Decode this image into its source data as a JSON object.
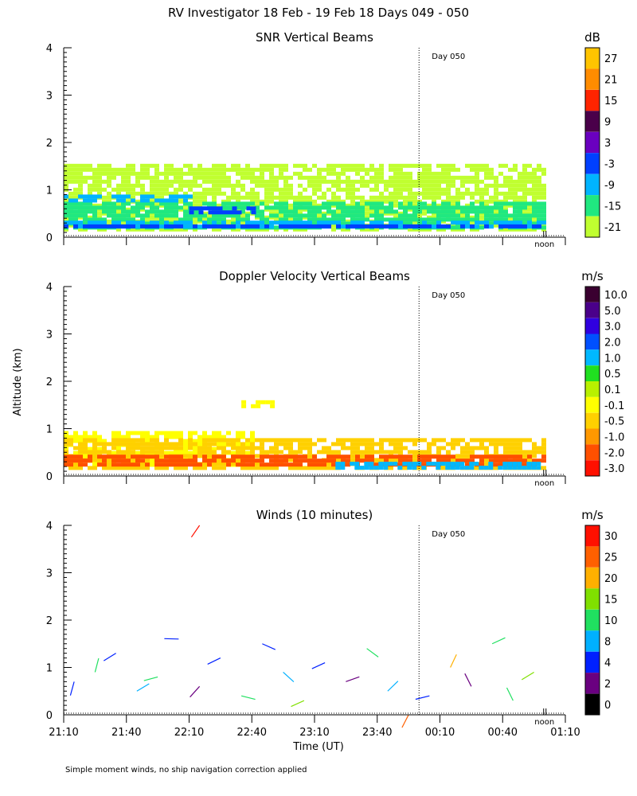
{
  "figure": {
    "title": "RV Investigator  18 Feb - 19 Feb 18 Days 049 - 050",
    "ylabel": "Altitude (km)",
    "xlabel": "Time (UT)",
    "footnote": "Simple moment winds, no ship navigation correction applied",
    "day_marker": "Day 050",
    "noon_label": "noon"
  },
  "chart_data": [
    {
      "type": "heatmap",
      "title": "SNR Vertical Beams",
      "colorbar": {
        "unit": "dB",
        "ticks": [
          "27",
          "21",
          "15",
          "9",
          "3",
          "-3",
          "-9",
          "-15",
          "-21"
        ],
        "colors": [
          "#ffc400",
          "#ff8c00",
          "#ff2400",
          "#4a004a",
          "#6a00c0",
          "#0040ff",
          "#00b4ff",
          "#20e880",
          "#c0ff30"
        ]
      },
      "x_ticks": [
        "21:10",
        "21:40",
        "22:10",
        "22:40",
        "23:10",
        "23:40",
        "00:10",
        "00:40",
        "01:10"
      ],
      "y_ticks": [
        "0",
        "1",
        "2",
        "3",
        "4"
      ],
      "ylim": [
        0,
        4
      ],
      "xlim": [
        0,
        240
      ],
      "layers": [
        {
          "value": -21,
          "x0": 0,
          "x1": 230,
          "y0": 0.15,
          "y1": 1.55
        },
        {
          "value": -15,
          "x0": 0,
          "x1": 230,
          "y0": 0.2,
          "y1": 0.75
        },
        {
          "value": -9,
          "x0": 0,
          "x1": 60,
          "y0": 0.75,
          "y1": 0.9
        },
        {
          "value": -9,
          "x0": 0,
          "x1": 230,
          "y0": 0.2,
          "y1": 0.35
        },
        {
          "value": -3,
          "x0": 60,
          "x1": 90,
          "y0": 0.5,
          "y1": 0.65
        },
        {
          "value": -3,
          "x0": 0,
          "x1": 230,
          "y0": 0.2,
          "y1": 0.27
        }
      ]
    },
    {
      "type": "heatmap",
      "title": "Doppler Velocity Vertical Beams",
      "colorbar": {
        "unit": "m/s",
        "ticks": [
          "10.0",
          "5.0",
          "3.0",
          "2.0",
          "1.0",
          "0.5",
          "0.1",
          "-0.1",
          "-0.5",
          "-1.0",
          "-2.0",
          "-3.0"
        ],
        "colors": [
          "#3a0030",
          "#4a008a",
          "#3000e0",
          "#0050ff",
          "#00b8ff",
          "#20e020",
          "#b8f000",
          "#ffff00",
          "#ffd000",
          "#ff9800",
          "#ff5000",
          "#ff1000"
        ]
      },
      "x_ticks": [
        "21:10",
        "21:40",
        "22:10",
        "22:40",
        "23:10",
        "23:40",
        "00:10",
        "00:40",
        "01:10"
      ],
      "y_ticks": [
        "0",
        "1",
        "2",
        "3",
        "4"
      ],
      "ylim": [
        0,
        4
      ],
      "xlim": [
        0,
        240
      ],
      "layers": [
        {
          "value": -0.1,
          "x0": 0,
          "x1": 90,
          "y0": 0.2,
          "y1": 0.95
        },
        {
          "value": -0.5,
          "x0": 0,
          "x1": 230,
          "y0": 0.2,
          "y1": 0.8
        },
        {
          "value": -2.0,
          "x0": 0,
          "x1": 230,
          "y0": 0.2,
          "y1": 0.45
        },
        {
          "value": 1.0,
          "x0": 130,
          "x1": 230,
          "y0": 0.2,
          "y1": 0.3
        },
        {
          "value": -0.1,
          "x0": 85,
          "x1": 100,
          "y0": 1.5,
          "y1": 1.6
        }
      ]
    },
    {
      "type": "scatter",
      "title": "Winds (10 minutes)",
      "colorbar": {
        "unit": "m/s",
        "ticks": [
          "30",
          "25",
          "20",
          "15",
          "10",
          "8",
          "4",
          "2",
          "0"
        ],
        "colors": [
          "#ff1000",
          "#ff6000",
          "#ffb000",
          "#80e000",
          "#20e060",
          "#00b0ff",
          "#0020ff",
          "#6a0080",
          "#000000"
        ]
      },
      "x_ticks": [
        "21:10",
        "21:40",
        "22:10",
        "22:40",
        "23:10",
        "23:40",
        "00:10",
        "00:40",
        "01:10"
      ],
      "y_ticks": [
        "0",
        "1",
        "2",
        "3",
        "4"
      ],
      "ylim": [
        0,
        4
      ],
      "xlim": [
        0,
        240
      ],
      "barbs": [
        {
          "t": 65,
          "alt": 4.0,
          "speed": 30
        },
        {
          "t": 5,
          "alt": 0.7,
          "speed": 6
        },
        {
          "t": 15,
          "alt": 0.9,
          "speed": 12
        },
        {
          "t": 25,
          "alt": 1.3,
          "speed": 4
        },
        {
          "t": 35,
          "alt": 0.5,
          "speed": 8
        },
        {
          "t": 45,
          "alt": 0.8,
          "speed": 10
        },
        {
          "t": 55,
          "alt": 1.6,
          "speed": 5
        },
        {
          "t": 65,
          "alt": 0.6,
          "speed": 3
        },
        {
          "t": 75,
          "alt": 1.2,
          "speed": 6
        },
        {
          "t": 85,
          "alt": 0.4,
          "speed": 14
        },
        {
          "t": 95,
          "alt": 1.5,
          "speed": 4
        },
        {
          "t": 105,
          "alt": 0.9,
          "speed": 8
        },
        {
          "t": 115,
          "alt": 0.3,
          "speed": 16
        },
        {
          "t": 125,
          "alt": 1.1,
          "speed": 6
        },
        {
          "t": 135,
          "alt": 0.7,
          "speed": 2
        },
        {
          "t": 145,
          "alt": 1.4,
          "speed": 12
        },
        {
          "t": 155,
          "alt": 0.5,
          "speed": 9
        },
        {
          "t": 165,
          "alt": 0.0,
          "speed": 28
        },
        {
          "t": 175,
          "alt": 0.4,
          "speed": 5
        },
        {
          "t": 185,
          "alt": 1.0,
          "speed": 20
        },
        {
          "t": 195,
          "alt": 0.6,
          "speed": 2
        },
        {
          "t": 205,
          "alt": 1.5,
          "speed": 10
        },
        {
          "t": 215,
          "alt": 0.3,
          "speed": 14
        },
        {
          "t": 225,
          "alt": 0.9,
          "speed": 18
        }
      ]
    }
  ]
}
